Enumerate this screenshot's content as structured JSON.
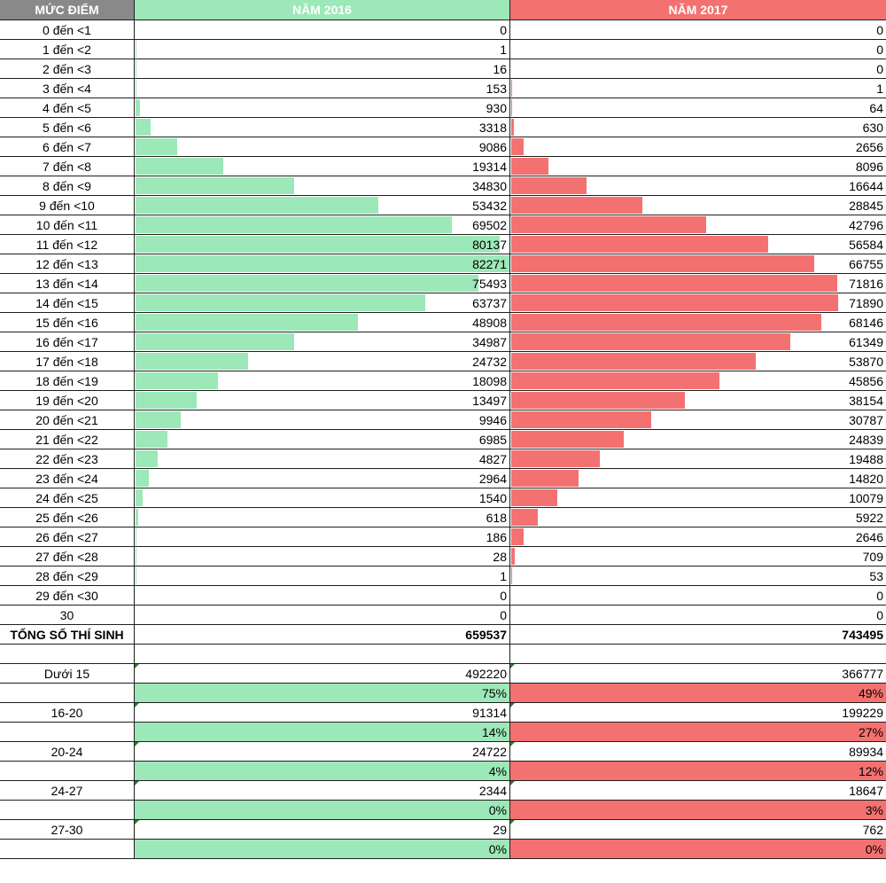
{
  "header": {
    "label": "MỨC ĐIỂM",
    "year2016": "NĂM 2016",
    "year2017": "NĂM 2017"
  },
  "colors": {
    "y2016": "#9de8b8",
    "y2017": "#f47171",
    "header_gray": "#898989"
  },
  "chart_data": {
    "type": "bar",
    "categories": [
      "0 đến <1",
      "1 đến <2",
      "2 đến <3",
      "3 đến <4",
      "4 đến <5",
      "5 đến <6",
      "6 đến <7",
      "7 đến <8",
      "8 đến <9",
      "9 đến <10",
      "10 đến <11",
      "11 đến <12",
      "12 đến <13",
      "13 đến <14",
      "14 đến <15",
      "15 đến <16",
      "16 đến <17",
      "17 đến <18",
      "18 đến <19",
      "19 đến <20",
      "20 đến <21",
      "21 đến <22",
      "22 đến <23",
      "23 đến <24",
      "24 đến <25",
      "25 đến <26",
      "26 đến <27",
      "27 đến <28",
      "28 đến <29",
      "29 đến <30",
      "30"
    ],
    "series": [
      {
        "name": "NĂM 2016",
        "values": [
          0,
          1,
          16,
          153,
          930,
          3318,
          9086,
          19314,
          34830,
          53432,
          69502,
          80137,
          82271,
          75493,
          63737,
          48908,
          34987,
          24732,
          18098,
          13497,
          9946,
          6985,
          4827,
          2964,
          1540,
          618,
          186,
          28,
          1,
          0,
          0
        ]
      },
      {
        "name": "NĂM 2017",
        "values": [
          0,
          0,
          0,
          1,
          64,
          630,
          2656,
          8096,
          16644,
          28845,
          42796,
          56584,
          66755,
          71816,
          71890,
          68146,
          61349,
          53870,
          45856,
          38154,
          30787,
          24839,
          19488,
          14820,
          10079,
          5922,
          2646,
          709,
          53,
          0,
          0
        ]
      }
    ]
  },
  "total": {
    "label": "TỔNG SỐ THÍ SINH",
    "y2016": "659537",
    "y2017": "743495"
  },
  "summary": [
    {
      "label": "Dưới 15",
      "y2016": "492220",
      "y2017": "366777",
      "pct2016": "75%",
      "pct2017": "49%"
    },
    {
      "label": "16-20",
      "y2016": "91314",
      "y2017": "199229",
      "pct2016": "14%",
      "pct2017": "27%"
    },
    {
      "label": "20-24",
      "y2016": "24722",
      "y2017": "89934",
      "pct2016": "4%",
      "pct2017": "12%"
    },
    {
      "label": "24-27",
      "y2016": "2344",
      "y2017": "18647",
      "pct2016": "0%",
      "pct2017": "3%"
    },
    {
      "label": "27-30",
      "y2016": "29",
      "y2017": "762",
      "pct2016": "0%",
      "pct2017": "0%"
    }
  ]
}
